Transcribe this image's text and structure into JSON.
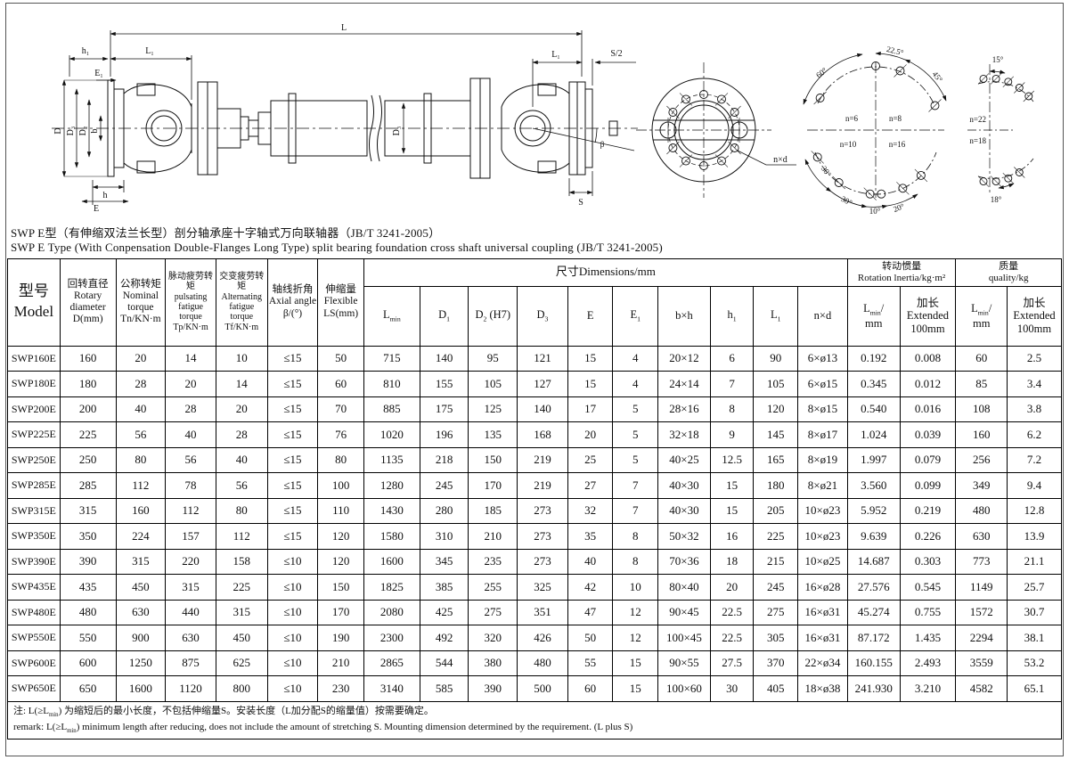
{
  "titles": {
    "cn": "SWP E型（有伸缩双法兰长型）剖分轴承座十字轴式万向联轴器（JB/T 3241-2005）",
    "en": "SWP E Type (With Conpensation Double-Flanges Long Type) split bearing foundation cross shaft universal coupling  (JB/T 3241-2005)"
  },
  "drawing": {
    "labels": {
      "L": "L",
      "h1": "h₁",
      "L1": "L₁",
      "E1": "E₁",
      "D": "D",
      "D3": "D₃",
      "D2": "D₂",
      "b": "b",
      "h": "h",
      "E": "E",
      "D3_shaft": "D₃",
      "L1_right": "L₁",
      "S2": "S/2",
      "S": "S",
      "beta": "β",
      "nxd": "n×d",
      "a60": "60°",
      "a225": "22.5°",
      "a45": "45°",
      "a30a": "30°",
      "a30b": "30°",
      "a10": "10°",
      "a20": "20°",
      "n6": "n=6",
      "n8": "n=8",
      "n10": "n=10",
      "n16": "n=16",
      "a15": "15°",
      "n22": "n=22",
      "n18": "n=18",
      "a18": "18°"
    }
  },
  "table": {
    "headers": {
      "model": "型号\nModel",
      "rotary": "回转直径\nRotary\ndiameter\nD(mm)",
      "nominal": "公称转矩\nNominal\ntorque\nTn/KN·m",
      "pulsating": "脉动疲劳转矩\npulsating\nfatigue\ntorque\nTp/KN·m",
      "alternating": "交变疲劳转矩\nAlternating\nfatigue\ntorque\nTf/KN·m",
      "axial": "轴线折角\nAxial angle\nβ/(°)",
      "flexible": "伸缩量\nFlexible\nLS(mm)",
      "dims_group": "尺寸Dimensions/mm",
      "inertia_group": "转动惯量\nRotation lnertia/kg·m²",
      "quality_group": "质量\nquality/kg",
      "dims": [
        "L~min~",
        "D~1~",
        "D~2~ (H7)",
        "D~3~",
        "E",
        "E~1~",
        "b×h",
        "h~1~",
        "L~1~",
        "n×d"
      ],
      "lmin_mm": "L~min~/\nmm",
      "extended": "加长\nExtended\n100mm"
    },
    "rows": [
      [
        "SWP160E",
        "160",
        "20",
        "14",
        "10",
        "≤15",
        "50",
        "715",
        "140",
        "95",
        "121",
        "15",
        "4",
        "20×12",
        "6",
        "90",
        "6×ø13",
        "0.192",
        "0.008",
        "60",
        "2.5"
      ],
      [
        "SWP180E",
        "180",
        "28",
        "20",
        "14",
        "≤15",
        "60",
        "810",
        "155",
        "105",
        "127",
        "15",
        "4",
        "24×14",
        "7",
        "105",
        "6×ø15",
        "0.345",
        "0.012",
        "85",
        "3.4"
      ],
      [
        "SWP200E",
        "200",
        "40",
        "28",
        "20",
        "≤15",
        "70",
        "885",
        "175",
        "125",
        "140",
        "17",
        "5",
        "28×16",
        "8",
        "120",
        "8×ø15",
        "0.540",
        "0.016",
        "108",
        "3.8"
      ],
      [
        "SWP225E",
        "225",
        "56",
        "40",
        "28",
        "≤15",
        "76",
        "1020",
        "196",
        "135",
        "168",
        "20",
        "5",
        "32×18",
        "9",
        "145",
        "8×ø17",
        "1.024",
        "0.039",
        "160",
        "6.2"
      ],
      [
        "SWP250E",
        "250",
        "80",
        "56",
        "40",
        "≤15",
        "80",
        "1135",
        "218",
        "150",
        "219",
        "25",
        "5",
        "40×25",
        "12.5",
        "165",
        "8×ø19",
        "1.997",
        "0.079",
        "256",
        "7.2"
      ],
      [
        "SWP285E",
        "285",
        "112",
        "78",
        "56",
        "≤15",
        "100",
        "1280",
        "245",
        "170",
        "219",
        "27",
        "7",
        "40×30",
        "15",
        "180",
        "8×ø21",
        "3.560",
        "0.099",
        "349",
        "9.4"
      ],
      [
        "SWP315E",
        "315",
        "160",
        "112",
        "80",
        "≤15",
        "110",
        "1430",
        "280",
        "185",
        "273",
        "32",
        "7",
        "40×30",
        "15",
        "205",
        "10×ø23",
        "5.952",
        "0.219",
        "480",
        "12.8"
      ],
      [
        "SWP350E",
        "350",
        "224",
        "157",
        "112",
        "≤15",
        "120",
        "1580",
        "310",
        "210",
        "273",
        "35",
        "8",
        "50×32",
        "16",
        "225",
        "10×ø23",
        "9.639",
        "0.226",
        "630",
        "13.9"
      ],
      [
        "SWP390E",
        "390",
        "315",
        "220",
        "158",
        "≤10",
        "120",
        "1600",
        "345",
        "235",
        "273",
        "40",
        "8",
        "70×36",
        "18",
        "215",
        "10×ø25",
        "14.687",
        "0.303",
        "773",
        "21.1"
      ],
      [
        "SWP435E",
        "435",
        "450",
        "315",
        "225",
        "≤10",
        "150",
        "1825",
        "385",
        "255",
        "325",
        "42",
        "10",
        "80×40",
        "20",
        "245",
        "16×ø28",
        "27.576",
        "0.545",
        "1149",
        "25.7"
      ],
      [
        "SWP480E",
        "480",
        "630",
        "440",
        "315",
        "≤10",
        "170",
        "2080",
        "425",
        "275",
        "351",
        "47",
        "12",
        "90×45",
        "22.5",
        "275",
        "16×ø31",
        "45.274",
        "0.755",
        "1572",
        "30.7"
      ],
      [
        "SWP550E",
        "550",
        "900",
        "630",
        "450",
        "≤10",
        "190",
        "2300",
        "492",
        "320",
        "426",
        "50",
        "12",
        "100×45",
        "22.5",
        "305",
        "16×ø31",
        "87.172",
        "1.435",
        "2294",
        "38.1"
      ],
      [
        "SWP600E",
        "600",
        "1250",
        "875",
        "625",
        "≤10",
        "210",
        "2865",
        "544",
        "380",
        "480",
        "55",
        "15",
        "90×55",
        "27.5",
        "370",
        "22×ø34",
        "160.155",
        "2.493",
        "3559",
        "53.2"
      ],
      [
        "SWP650E",
        "650",
        "1600",
        "1120",
        "800",
        "≤10",
        "230",
        "3140",
        "585",
        "390",
        "500",
        "60",
        "15",
        "100×60",
        "30",
        "405",
        "18×ø38",
        "241.930",
        "3.210",
        "4582",
        "65.1"
      ]
    ]
  },
  "notes": {
    "cn": "注: L(≥L~min~) 为缩短后的最小长度，不包括伸缩量S。安装长度（L加分配S的缩量值）按需要确定。",
    "en": "remark: L(≥L~min~)  minimum length after reducing, does not include the amount of stretching S. Mounting dimension determined by the requirement. (L plus S)"
  }
}
